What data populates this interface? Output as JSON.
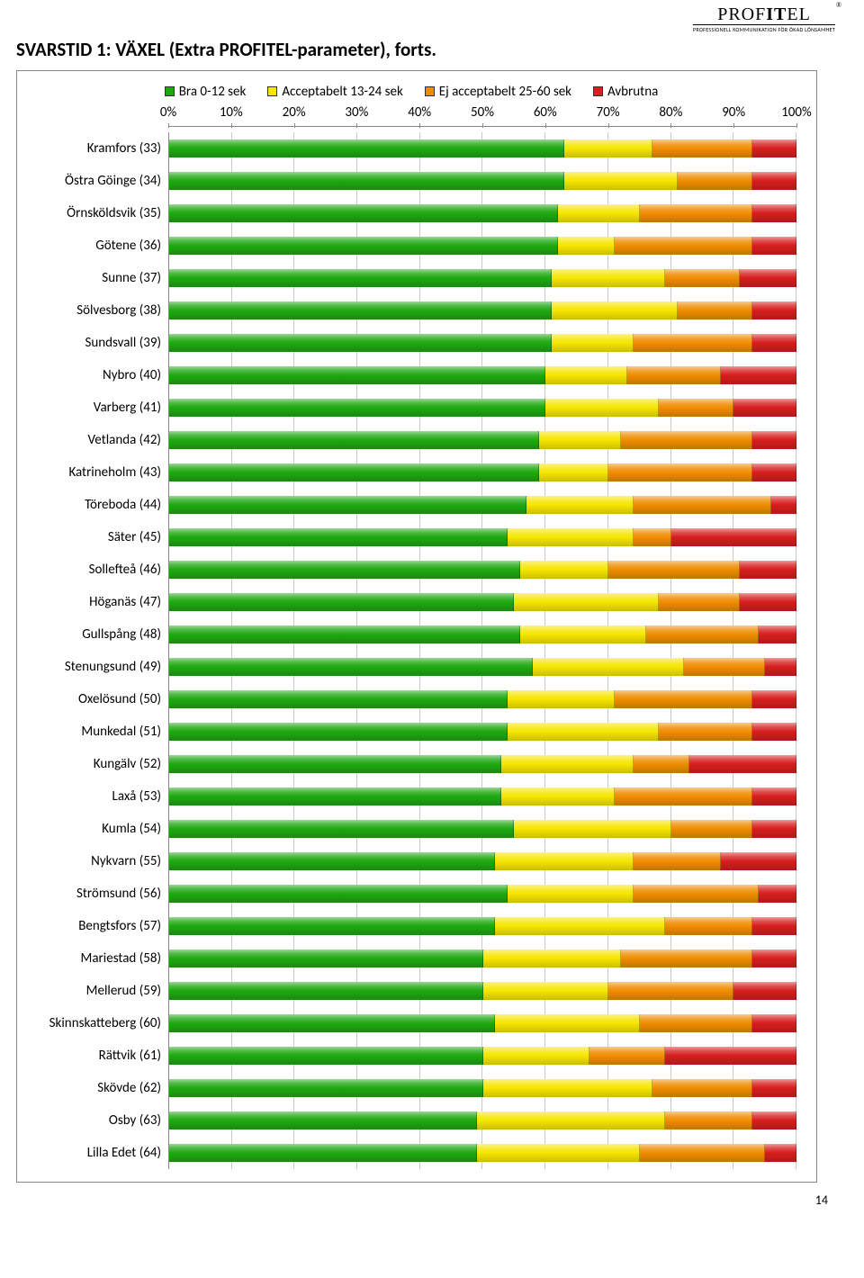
{
  "page_number": "14",
  "logo": {
    "brand_thin1": "P",
    "brand_thin2": "ROF",
    "brand_bold1": "I",
    "brand_bold2": "T",
    "brand_thin3": "EL",
    "registered": "®",
    "tagline": "PROFESSIONELL KOMMUNIKATION FÖR ÖKAD LÖNSAMHET"
  },
  "title": "SVARSTID 1: VÄXEL (Extra PROFITEL-parameter), forts.",
  "chart": {
    "type": "stacked-bar-horizontal",
    "legend": [
      {
        "label": "Bra 0-12 sek",
        "color": "#1ea80f"
      },
      {
        "label": "Acceptabelt 13-24 sek",
        "color": "#f6e600"
      },
      {
        "label": "Ej acceptabelt 25-60 sek",
        "color": "#f08c00"
      },
      {
        "label": "Avbrutna",
        "color": "#d81e1e"
      }
    ],
    "xticks": [
      "0%",
      "10%",
      "20%",
      "30%",
      "40%",
      "50%",
      "60%",
      "70%",
      "80%",
      "90%",
      "100%"
    ],
    "series_colors": [
      "#1ea80f",
      "#f6e600",
      "#f08c00",
      "#d81e1e"
    ],
    "label_fontsize": 15,
    "axis_fontsize": 15,
    "legend_fontsize": 15,
    "bar_row_height": 36,
    "frame_border": "#888888",
    "grid_color": "#c9c9c9",
    "background": "#ffffff",
    "rows": [
      {
        "label": "Kramfors  (33)",
        "v": [
          63,
          14,
          16,
          7
        ]
      },
      {
        "label": "Östra Göinge (34)",
        "v": [
          63,
          18,
          12,
          7
        ]
      },
      {
        "label": "Örnsköldsvik (35)",
        "v": [
          62,
          13,
          18,
          7
        ]
      },
      {
        "label": "Götene  (36)",
        "v": [
          62,
          9,
          22,
          7
        ]
      },
      {
        "label": "Sunne  (37)",
        "v": [
          61,
          18,
          12,
          9
        ]
      },
      {
        "label": "Sölvesborg (38)",
        "v": [
          61,
          20,
          12,
          7
        ]
      },
      {
        "label": "Sundsvall (39)",
        "v": [
          61,
          13,
          19,
          7
        ]
      },
      {
        "label": "Nybro  (40)",
        "v": [
          60,
          13,
          15,
          12
        ]
      },
      {
        "label": "Varberg (41)",
        "v": [
          60,
          18,
          12,
          10
        ]
      },
      {
        "label": "Vetlanda (42)",
        "v": [
          59,
          13,
          21,
          7
        ]
      },
      {
        "label": "Katrineholm (43)",
        "v": [
          59,
          11,
          23,
          7
        ]
      },
      {
        "label": "Töreboda (44)",
        "v": [
          57,
          17,
          22,
          4
        ]
      },
      {
        "label": "Säter (45)",
        "v": [
          54,
          20,
          6,
          20
        ]
      },
      {
        "label": "Sollefteå  (46)",
        "v": [
          56,
          14,
          21,
          9
        ]
      },
      {
        "label": "Höganäs (47)",
        "v": [
          55,
          23,
          13,
          9
        ]
      },
      {
        "label": "Gullspång (48)",
        "v": [
          56,
          20,
          18,
          6
        ]
      },
      {
        "label": "Stenungsund (49)",
        "v": [
          58,
          24,
          13,
          5
        ]
      },
      {
        "label": "Oxelösund (50)",
        "v": [
          54,
          17,
          22,
          7
        ]
      },
      {
        "label": "Munkedal (51)",
        "v": [
          54,
          24,
          15,
          7
        ]
      },
      {
        "label": "Kungälv (52)",
        "v": [
          53,
          21,
          9,
          17
        ]
      },
      {
        "label": "Laxå (53)",
        "v": [
          53,
          18,
          22,
          7
        ]
      },
      {
        "label": "Kumla  (54)",
        "v": [
          55,
          25,
          13,
          7
        ]
      },
      {
        "label": "Nykvarn (55)",
        "v": [
          52,
          22,
          14,
          12
        ]
      },
      {
        "label": "Strömsund (56)",
        "v": [
          54,
          20,
          20,
          6
        ]
      },
      {
        "label": "Bengtsfors (57)",
        "v": [
          52,
          27,
          14,
          7
        ]
      },
      {
        "label": "Mariestad (58)",
        "v": [
          50,
          22,
          21,
          7
        ]
      },
      {
        "label": "Mellerud (59)",
        "v": [
          50,
          20,
          20,
          10
        ]
      },
      {
        "label": "Skinnskatteberg (60)",
        "v": [
          52,
          23,
          18,
          7
        ]
      },
      {
        "label": "Rättvik (61)",
        "v": [
          50,
          17,
          12,
          21
        ]
      },
      {
        "label": "Skövde (62)",
        "v": [
          50,
          27,
          16,
          7
        ]
      },
      {
        "label": "Osby  (63)",
        "v": [
          49,
          30,
          14,
          7
        ]
      },
      {
        "label": "Lilla Edet (64)",
        "v": [
          49,
          26,
          20,
          5
        ]
      }
    ]
  }
}
